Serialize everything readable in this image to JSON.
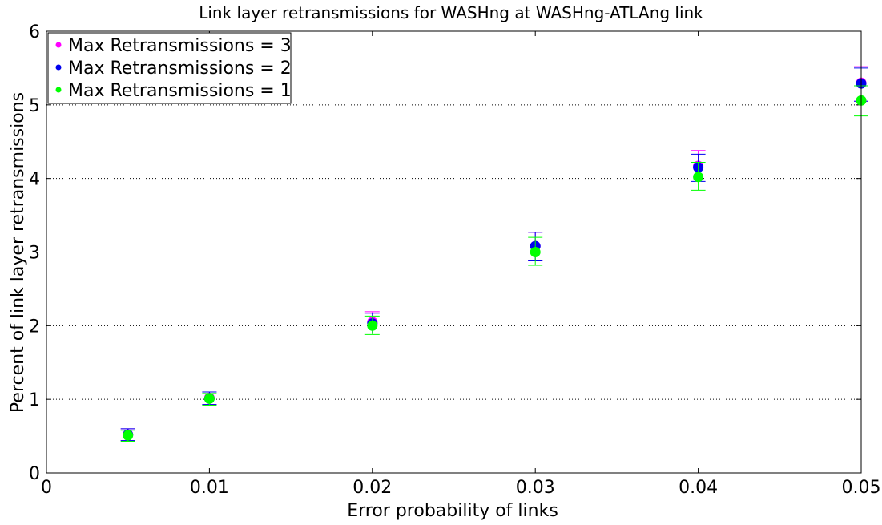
{
  "chart_data": {
    "type": "scatter",
    "title": "Link layer retransmissions for WASHng at WASHng-ATLAng link",
    "xlabel": "Error probability of links",
    "ylabel": "Percent of link layer retransmissions",
    "xlim": [
      0,
      0.05
    ],
    "ylim": [
      0,
      6
    ],
    "x_ticks": [
      0,
      0.01,
      0.02,
      0.03,
      0.04,
      0.05
    ],
    "x_tick_labels": [
      "0",
      "0.01",
      "0.02",
      "0.03",
      "0.04",
      "0.05"
    ],
    "y_ticks": [
      0,
      1,
      2,
      3,
      4,
      5,
      6
    ],
    "y_tick_labels": [
      "0",
      "1",
      "2",
      "3",
      "4",
      "5",
      "6"
    ],
    "grid": "horizontal-dotted",
    "legend_position": "top-left",
    "series": [
      {
        "name": "Max Retransmissions = 3",
        "color": "#ff00ff",
        "x": [
          0.005,
          0.01,
          0.02,
          0.03,
          0.04,
          0.05
        ],
        "y": [
          0.52,
          1.02,
          2.05,
          3.08,
          4.17,
          5.3
        ],
        "err_low": [
          0.44,
          0.93,
          1.9,
          2.88,
          3.98,
          5.05
        ],
        "err_high": [
          0.6,
          1.1,
          2.19,
          3.27,
          4.38,
          5.52
        ]
      },
      {
        "name": "Max Retransmissions = 2",
        "color": "#0000ee",
        "x": [
          0.005,
          0.01,
          0.02,
          0.03,
          0.04,
          0.05
        ],
        "y": [
          0.52,
          1.01,
          2.03,
          3.08,
          4.15,
          5.29
        ],
        "err_low": [
          0.44,
          0.93,
          1.9,
          2.88,
          3.96,
          5.05
        ],
        "err_high": [
          0.6,
          1.1,
          2.17,
          3.27,
          4.33,
          5.5
        ]
      },
      {
        "name": "Max Retransmissions = 1",
        "color": "#00ff00",
        "x": [
          0.005,
          0.01,
          0.02,
          0.03,
          0.04,
          0.05
        ],
        "y": [
          0.51,
          1.01,
          2.0,
          3.0,
          4.02,
          5.06
        ],
        "err_low": [
          0.43,
          0.92,
          1.88,
          2.82,
          3.84,
          4.85
        ],
        "err_high": [
          0.58,
          1.08,
          2.13,
          3.2,
          4.22,
          5.26
        ]
      }
    ]
  }
}
